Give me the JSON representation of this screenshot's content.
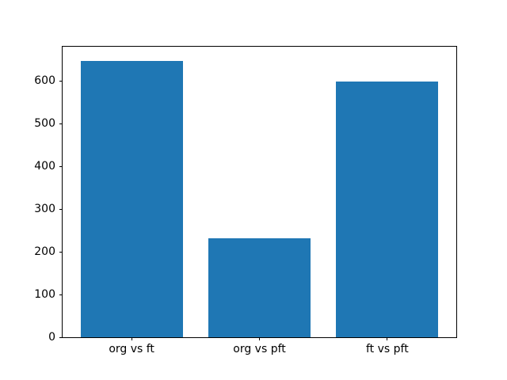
{
  "chart_data": {
    "type": "bar",
    "title": "",
    "xlabel": "",
    "ylabel": "",
    "categories": [
      "org vs ft",
      "org vs pft",
      "ft vs pft"
    ],
    "values": [
      647,
      232,
      599
    ],
    "x": [
      0,
      1,
      2
    ],
    "xlim": [
      -0.54,
      2.54
    ],
    "ylim": [
      0,
      680
    ],
    "yticks": [
      0,
      100,
      200,
      300,
      400,
      500,
      600
    ],
    "bar_width": 0.8,
    "bar_color": "#1f77b4",
    "grid": false,
    "legend": null,
    "background_color": "#ffffff",
    "spine_color": "#000000",
    "text_color": "#000000"
  }
}
